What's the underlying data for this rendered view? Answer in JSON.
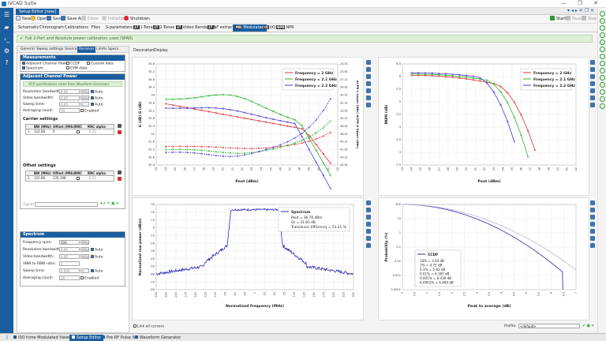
{
  "window": {
    "title": "IVCAD Suite"
  },
  "document_tab": {
    "label": "Setup Editor [new]"
  },
  "toolbar": {
    "new": "New",
    "open": "Open",
    "save": "Save",
    "save_as": "Save As",
    "close": "Close",
    "initialize": "Initialize",
    "shutdown": "Shutdown",
    "start": "Start",
    "pause": "Pause",
    "stop": "Stop"
  },
  "mode_tabs": [
    {
      "label": "Schematic",
      "badge": ""
    },
    {
      "label": "Chronogram",
      "badge": ""
    },
    {
      "label": "Calibrations",
      "badge": ""
    },
    {
      "label": "Files",
      "badge": ""
    },
    {
      "label": "S-parameters",
      "badge": ""
    },
    {
      "label": "1-Tone",
      "badge": "1T"
    },
    {
      "label": "2-Tones",
      "badge": "2T"
    },
    {
      "label": "Video Bandwidth",
      "badge": "2T"
    },
    {
      "label": "LF extraction",
      "badge": "2T"
    },
    {
      "label": "Modulated",
      "badge": "MD"
    },
    {
      "label": "I/Q",
      "badge": "IQ"
    },
    {
      "label": "NPR",
      "badge": "NPR"
    }
  ],
  "notice": "Full 2-Port and Absolute power calibration used (SPAR)",
  "left_tabs": [
    "General",
    "Sweep settings",
    "Source",
    "Receiver",
    "Limits Specs"
  ],
  "measurements": {
    "title": "Measurements",
    "items": [
      {
        "label": "Adjacent Channel Power",
        "checked": true
      },
      {
        "label": "CCDF",
        "checked": false
      },
      {
        "label": "Custom data",
        "checked": false
      },
      {
        "label": "Spectrum",
        "checked": true
      },
      {
        "label": "EVM data",
        "checked": false
      }
    ]
  },
  "acp": {
    "title": "Adjacent Channel Power",
    "info": "ACP specifications come from Waveform Generator",
    "rows": [
      {
        "label": "Resolution bandwidth:",
        "value": "0.05",
        "unit": "MHz",
        "auto": "Auto"
      },
      {
        "label": "Video bandwidth:",
        "value": "0.05",
        "unit": "MHz",
        "auto": "Auto"
      },
      {
        "label": "Sweep time:",
        "value": "0.05",
        "unit": "s",
        "auto": "Auto"
      },
      {
        "label": "Averaging count:",
        "value": "10",
        "unit": "",
        "auto": "Enabled"
      }
    ],
    "carrier_title": "Carrier settings",
    "table_headers": [
      "BW (MHz)",
      "Offset (MHz)",
      "RRC",
      "RRC alpha"
    ],
    "carrier_row": [
      "1",
      "122.88",
      "0",
      "",
      "0.22"
    ],
    "offset_title": "Offset settings",
    "offset_row": [
      "1",
      "122.88",
      "135.168",
      "",
      "0.22"
    ],
    "signal_label": "Signal"
  },
  "spectrum_panel": {
    "title": "Spectrum",
    "rows": [
      {
        "label": "Frequency span:",
        "value": "500",
        "unit": "MHz",
        "auto": ""
      },
      {
        "label": "Resolution bandwidth:",
        "value": "0.05",
        "unit": "MHz",
        "auto": "Auto"
      },
      {
        "label": "Video bandwidth:",
        "value": "0.05",
        "unit": "MHz",
        "auto": "Auto"
      },
      {
        "label": "VBW to RBW ratio:",
        "value": "1",
        "unit": "",
        "auto": ""
      },
      {
        "label": "Sweep time:",
        "value": "0.005",
        "unit": "s",
        "auto": "Auto"
      },
      {
        "label": "Averaging count:",
        "value": "10",
        "unit": "",
        "auto": "Enabled"
      }
    ]
  },
  "sub_tabs": [
    "Decoration",
    "Display"
  ],
  "plot1": {
    "xlabel": "Pout (dBm)",
    "ylabel": "G (dB) G (dB)",
    "y2label": "ACPR L Lower (dBc) ACPR U Upper (dBc)",
    "legend": [
      "Frequency = 2 GHz",
      "Frequency = 2.1 GHz",
      "Frequency = 2.2 GHz"
    ],
    "x_ticks": [
      "23",
      "24",
      "25",
      "26",
      "27",
      "28",
      "29",
      "30",
      "31",
      "32",
      "33",
      "34",
      "35",
      "36",
      "37",
      "38",
      "39",
      "40",
      "41",
      "42"
    ],
    "y_ticks": [
      "35.6",
      "35.2",
      "34.8",
      "34.4",
      "34",
      "33.6",
      "33.2",
      "32.8",
      "32.4",
      "32",
      "31.6",
      "31.2",
      "30.8",
      "30.4"
    ],
    "y2_ticks": [
      "-24.01",
      "-25.61",
      "-27.21",
      "-28.81",
      "-30.41",
      "-32.01",
      "-33.61",
      "-35.21",
      "-36.81",
      "-38.41",
      "-40.01",
      "-41.61",
      "-43.21",
      "-44.81"
    ]
  },
  "plot2": {
    "xlabel": "Pout (dBm)",
    "ylabel": "PAPR (dB)",
    "legend": [
      "Frequency = 2 GHz",
      "Frequency = 2.1 GHz",
      "Frequency = 2.2 GHz"
    ],
    "x_ticks": [
      "23",
      "24",
      "25",
      "26",
      "27",
      "28",
      "29",
      "30",
      "31",
      "32",
      "33",
      "34",
      "35",
      "36",
      "37",
      "38",
      "39",
      "40",
      "41",
      "42"
    ],
    "y_ticks": [
      "6.5",
      "6",
      "5.5",
      "5",
      "4.5",
      "4",
      "3.5",
      "3",
      "2.5"
    ]
  },
  "plot3": {
    "xlabel": "Normalized frequency (MHz)",
    "ylabel": "Normalized raw power (dBm)",
    "legend_title": "Spectrum",
    "info": [
      "Pout = 36.76 dBm",
      "Gt = 31.81 dB",
      "Transducer Efficiency = 51.21 %"
    ],
    "x_ticks": [
      "-250",
      "-225",
      "-200",
      "-175",
      "-150",
      "-125",
      "-100",
      "-75",
      "-50",
      "-25",
      "0",
      "25",
      "50",
      "75",
      "100",
      "125",
      "150",
      "175",
      "200",
      "225",
      "250"
    ],
    "y_ticks": [
      "30",
      "20",
      "10",
      "0",
      "-10",
      "-20",
      "-30",
      "-40",
      "-50",
      "-60",
      "-70",
      "-80"
    ]
  },
  "plot4": {
    "xlabel": "Peak to average (dB)",
    "ylabel": "Probability (%)",
    "legend_title": "CCDF",
    "info": [
      "10% = 3.04 dB",
      "1% = 4.75 dB",
      "0.1% = 5.62 dB",
      "0.01% = 6.187 dB",
      "0.001% = 6.439 dB",
      "0.0001% = 6.469 dB"
    ],
    "x_ticks": [
      "0",
      "0.5",
      "1",
      "1.5",
      "2",
      "2.5",
      "3",
      "3.5",
      "4",
      "4.5",
      "5",
      "5.5",
      "6",
      "6.5",
      "7"
    ],
    "y_ticks": [
      "100",
      "10",
      "1",
      "0.1",
      "0.01",
      "0.001",
      "0.0001"
    ]
  },
  "bottom": {
    "link_cursors": "Link all cursors",
    "profile_label": "Profile:",
    "profile_value": "<default>"
  },
  "taskbar": [
    "ISO hime Modulated Viewer",
    "Setup Editor",
    "Pre-RF Pulse IV",
    "Waveform Generator"
  ],
  "colors": {
    "accent": "#1b5e9f",
    "red": "#e03030",
    "green": "#2cb52c",
    "purple": "#4a3cd6",
    "blue": "#2a2ab0"
  }
}
